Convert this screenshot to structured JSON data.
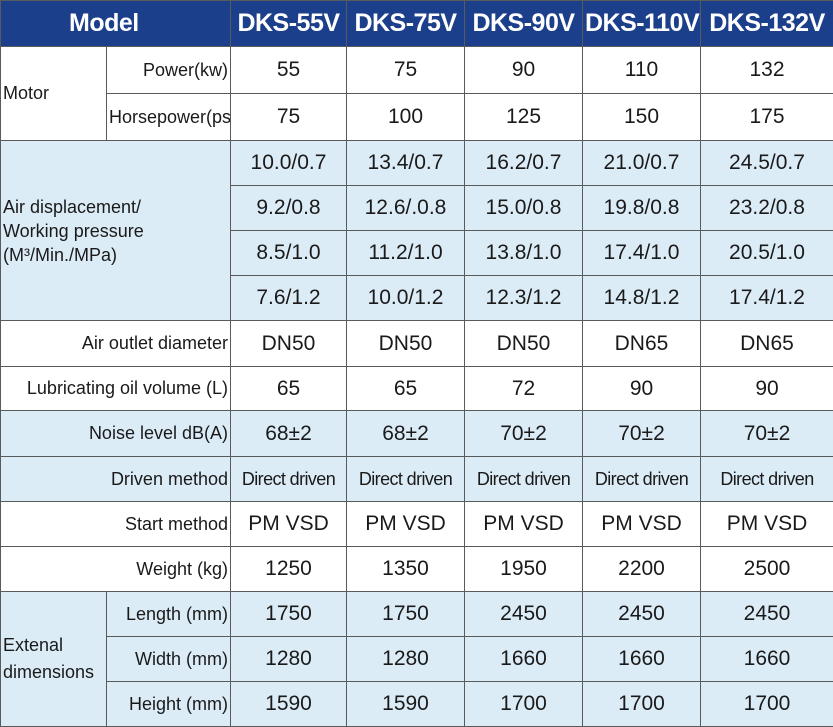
{
  "header": {
    "model_label": "Model",
    "models": [
      "DKS-55V",
      "DKS-75V",
      "DKS-90V",
      "DKS-110V",
      "DKS-132V"
    ]
  },
  "motor": {
    "group_label": "Motor",
    "power_label": "Power(kw)",
    "power_values": [
      "55",
      "75",
      "90",
      "110",
      "132"
    ],
    "hp_label": "Horsepower(ps)",
    "hp_values": [
      "75",
      "100",
      "125",
      "150",
      "175"
    ]
  },
  "air": {
    "label_lines": [
      "Air displacement/",
      "Working pressure",
      "(M³/Min./MPa)"
    ],
    "rows": [
      [
        "10.0/0.7",
        "13.4/0.7",
        "16.2/0.7",
        "21.0/0.7",
        "24.5/0.7"
      ],
      [
        "9.2/0.8",
        "12.6/.0.8",
        "15.0/0.8",
        "19.8/0.8",
        "23.2/0.8"
      ],
      [
        "8.5/1.0",
        "11.2/1.0",
        "13.8/1.0",
        "17.4/1.0",
        "20.5/1.0"
      ],
      [
        "7.6/1.2",
        "10.0/1.2",
        "12.3/1.2",
        "14.8/1.2",
        "17.4/1.2"
      ]
    ]
  },
  "outlet": {
    "label": "Air outlet diameter",
    "values": [
      "DN50",
      "DN50",
      "DN50",
      "DN65",
      "DN65"
    ]
  },
  "oil": {
    "label": "Lubricating oil volume (L)",
    "values": [
      "65",
      "65",
      "72",
      "90",
      "90"
    ]
  },
  "noise": {
    "label": "Noise level dB(A)",
    "values": [
      "68±2",
      "68±2",
      "70±2",
      "70±2",
      "70±2"
    ]
  },
  "driven": {
    "label": "Driven method",
    "values": [
      "Direct driven",
      "Direct driven",
      "Direct driven",
      "Direct driven",
      "Direct driven"
    ]
  },
  "start": {
    "label": "Start method",
    "values": [
      "PM VSD",
      "PM VSD",
      "PM VSD",
      "PM VSD",
      "PM VSD"
    ]
  },
  "weight": {
    "label": "Weight (kg)",
    "values": [
      "1250",
      "1350",
      "1950",
      "2200",
      "2500"
    ]
  },
  "dims": {
    "group_lines": [
      "Extenal",
      "dimensions"
    ],
    "length_label": "Length (mm)",
    "length_values": [
      "1750",
      "1750",
      "2450",
      "2450",
      "2450"
    ],
    "width_label": "Width (mm)",
    "width_values": [
      "1280",
      "1280",
      "1660",
      "1660",
      "1660"
    ],
    "height_label": "Height (mm)",
    "height_values": [
      "1590",
      "1590",
      "1700",
      "1700",
      "1700"
    ]
  },
  "colors": {
    "header_bg": "#1b3f8b",
    "header_text": "#ffffff",
    "band_light_blue": "#dcecf7",
    "band_white": "#ffffff",
    "grid_line": "#5a5a5a"
  }
}
